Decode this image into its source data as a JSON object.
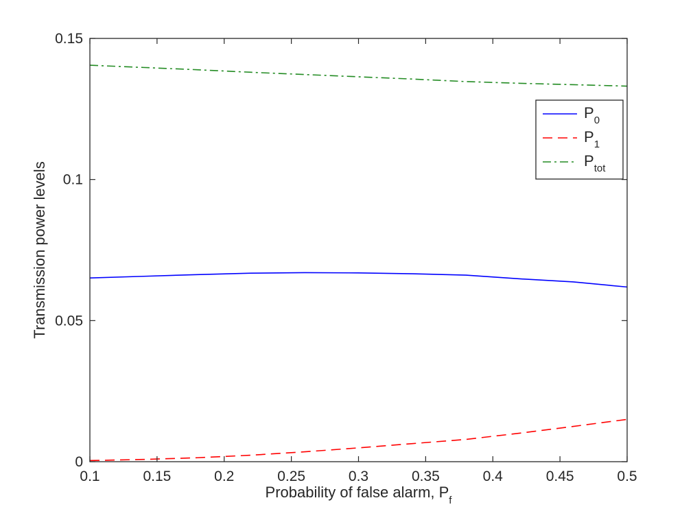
{
  "chart_data": {
    "type": "line",
    "xlabel": "Probability of false alarm, P",
    "xlabel_subscript": "f",
    "ylabel": "Transmission power levels",
    "xlim": [
      0.1,
      0.5
    ],
    "ylim": [
      0,
      0.15
    ],
    "xticks": [
      0.1,
      0.15,
      0.2,
      0.25,
      0.3,
      0.35,
      0.4,
      0.45,
      0.5
    ],
    "xtick_labels": [
      "0.1",
      "0.15",
      "0.2",
      "0.25",
      "0.3",
      "0.35",
      "0.4",
      "0.45",
      "0.5"
    ],
    "yticks": [
      0,
      0.05,
      0.1,
      0.15
    ],
    "ytick_labels": [
      "0",
      "0.05",
      "0.1",
      "0.15"
    ],
    "grid": false,
    "legend_position": "top-right",
    "series": [
      {
        "name": "P",
        "subscript": "0",
        "color": "#0000ff",
        "line_style": "solid",
        "x": [
          0.1,
          0.14,
          0.18,
          0.22,
          0.26,
          0.3,
          0.34,
          0.38,
          0.42,
          0.46,
          0.5
        ],
        "y": [
          0.0651,
          0.0657,
          0.0663,
          0.0668,
          0.067,
          0.0669,
          0.0666,
          0.0661,
          0.0648,
          0.0637,
          0.0619
        ]
      },
      {
        "name": "P",
        "subscript": "1",
        "color": "#ff0000",
        "line_style": "dashed",
        "x": [
          0.1,
          0.14,
          0.18,
          0.22,
          0.26,
          0.3,
          0.34,
          0.38,
          0.42,
          0.46,
          0.5
        ],
        "y": [
          0.0004,
          0.0008,
          0.0014,
          0.0023,
          0.0035,
          0.0049,
          0.0064,
          0.0079,
          0.0101,
          0.0125,
          0.015
        ]
      },
      {
        "name": "P",
        "subscript": "tot",
        "color": "#228b22",
        "line_style": "dashdot",
        "x": [
          0.1,
          0.14,
          0.18,
          0.22,
          0.26,
          0.3,
          0.34,
          0.38,
          0.42,
          0.46,
          0.5
        ],
        "y": [
          0.1405,
          0.1397,
          0.1389,
          0.138,
          0.1372,
          0.1364,
          0.1356,
          0.1347,
          0.1341,
          0.1336,
          0.1331
        ]
      }
    ]
  }
}
